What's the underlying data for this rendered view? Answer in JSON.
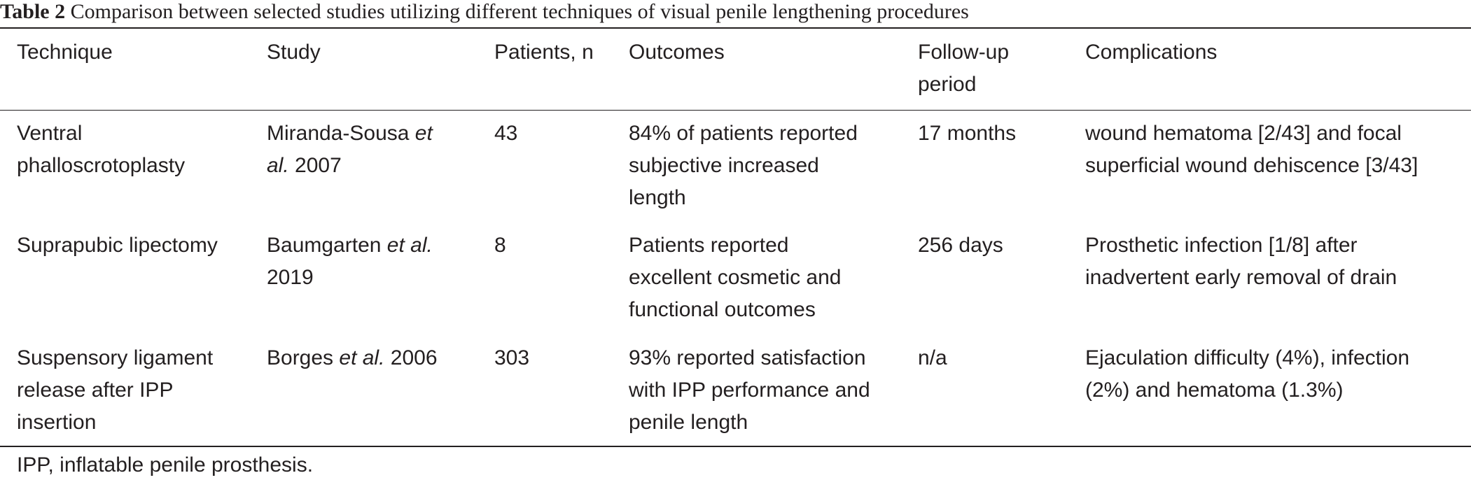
{
  "caption": {
    "label": "Table 2",
    "text": "Comparison between selected studies utilizing different techniques of visual penile lengthening procedures"
  },
  "headers": {
    "technique": "Technique",
    "study": "Study",
    "patients": "Patients, n",
    "outcomes": "Outcomes",
    "followup_1": "Follow-up",
    "followup_2": "period",
    "complications": "Complications"
  },
  "rows": [
    {
      "technique_1": "Ventral",
      "technique_2": "phalloscrotoplasty",
      "study_author": "Miranda-Sousa ",
      "study_etal_1": "et",
      "study_etal_2": "al.",
      "study_year": " 2007",
      "patients": "43",
      "outcomes_1": "84% of patients reported",
      "outcomes_2": "subjective increased",
      "outcomes_3": "length",
      "followup": "17 months",
      "complications_1": "wound hematoma [2/43] and focal",
      "complications_2": "superficial wound dehiscence [3/43]"
    },
    {
      "technique_1": "Suprapubic lipectomy",
      "study_author": "Baumgarten ",
      "study_etal": "et al.",
      "study_year": "2019",
      "patients": "8",
      "outcomes_1": "Patients reported",
      "outcomes_2": "excellent cosmetic and",
      "outcomes_3": "functional outcomes",
      "followup": "256 days",
      "complications_1": "Prosthetic infection [1/8] after",
      "complications_2": "inadvertent early removal of drain"
    },
    {
      "technique_1": "Suspensory ligament",
      "technique_2": "release after IPP",
      "technique_3": "insertion",
      "study_author": "Borges ",
      "study_etal": "et al.",
      "study_year": " 2006",
      "patients": "303",
      "outcomes_1": "93% reported satisfaction",
      "outcomes_2": "with IPP performance and",
      "outcomes_3": "penile length",
      "followup": "n/a",
      "complications_1": "Ejaculation difficulty (4%), infection",
      "complications_2": "(2%) and hematoma (1.3%)"
    }
  ],
  "footnote": "IPP, inflatable penile prosthesis."
}
